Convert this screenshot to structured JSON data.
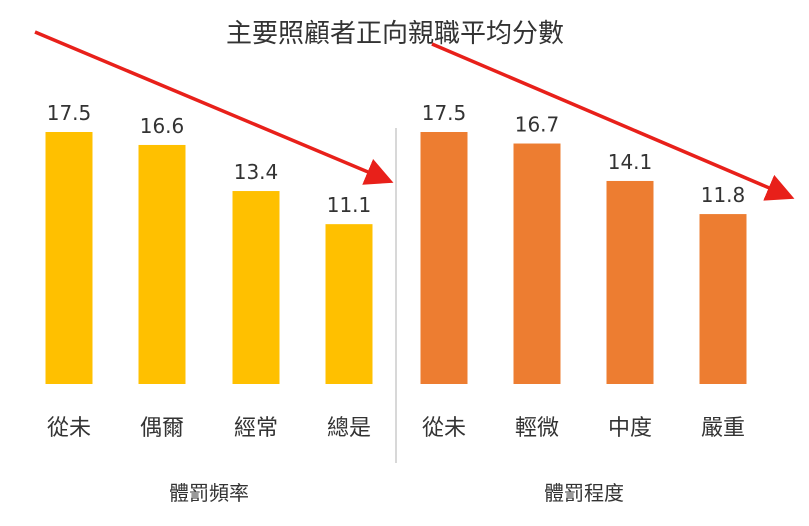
{
  "chart_data": {
    "type": "bar",
    "title": "主要照顧者正向親職平均分數",
    "groups": [
      {
        "name": "體罰頻率",
        "color": "#FFC000",
        "categories": [
          "從未",
          "偶爾",
          "經常",
          "總是"
        ],
        "values": [
          17.5,
          16.6,
          13.4,
          11.1
        ]
      },
      {
        "name": "體罰程度",
        "color": "#ED7D31",
        "categories": [
          "從未",
          "輕微",
          "中度",
          "嚴重"
        ],
        "values": [
          17.5,
          16.7,
          14.1,
          11.8
        ]
      }
    ],
    "value_labels": true,
    "ylim": [
      0,
      17.5
    ],
    "grid": false,
    "annotations": [
      {
        "type": "trend-arrow",
        "group": 0,
        "color": "#E8201A"
      },
      {
        "type": "trend-arrow",
        "group": 1,
        "color": "#E8201A"
      }
    ]
  }
}
